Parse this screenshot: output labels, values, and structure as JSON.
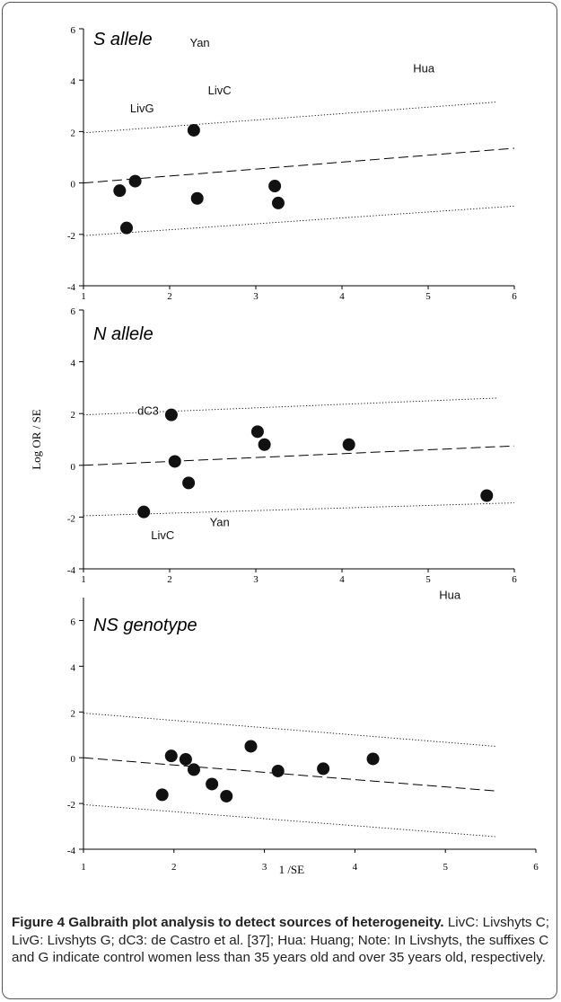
{
  "chart_data": [
    {
      "type": "scatter",
      "title": "S allele",
      "xlim": [
        1,
        6
      ],
      "ylim": [
        -4,
        6
      ],
      "xticks": [
        "1",
        "2",
        "3",
        "4",
        "5",
        "6"
      ],
      "yticks": [
        "-4",
        "-2",
        "0",
        "2",
        "4",
        "6"
      ],
      "x_tick_font": "small",
      "points": [
        {
          "x": 1.42,
          "y": -0.3
        },
        {
          "x": 1.5,
          "y": -1.75
        },
        {
          "x": 1.6,
          "y": 0.07
        },
        {
          "x": 2.28,
          "y": 2.05
        },
        {
          "x": 2.32,
          "y": -0.6
        },
        {
          "x": 3.22,
          "y": -0.12
        },
        {
          "x": 3.26,
          "y": -0.78
        }
      ],
      "regression": {
        "from": [
          1,
          0
        ],
        "to": [
          6,
          1.35
        ]
      },
      "upper_band": {
        "from": [
          1,
          1.95
        ],
        "to": [
          5.8,
          3.15
        ]
      },
      "lower_band": {
        "from": [
          1,
          -2.05
        ],
        "to": [
          6,
          -0.9
        ]
      },
      "annotations": [
        {
          "text": "Yan",
          "x": 2.35,
          "y": 5.3
        },
        {
          "text": "Hua",
          "x": 4.95,
          "y": 4.3
        },
        {
          "text": "LivG",
          "x": 1.68,
          "y": 2.75
        },
        {
          "text": "LivC",
          "x": 2.58,
          "y": 3.45
        }
      ]
    },
    {
      "type": "scatter",
      "title": "N allele",
      "ylabel": "Log OR / SE",
      "xlim": [
        1,
        6
      ],
      "ylim": [
        -4,
        6
      ],
      "xticks": [
        "1",
        "2",
        "3",
        "4",
        "5",
        "6"
      ],
      "yticks": [
        "-4",
        "-2",
        "0",
        "2",
        "4",
        "6"
      ],
      "x_tick_font": "small",
      "points": [
        {
          "x": 1.7,
          "y": -1.8
        },
        {
          "x": 2.02,
          "y": 1.95
        },
        {
          "x": 2.06,
          "y": 0.15
        },
        {
          "x": 2.22,
          "y": -0.68
        },
        {
          "x": 3.02,
          "y": 1.3
        },
        {
          "x": 3.1,
          "y": 0.8
        },
        {
          "x": 4.08,
          "y": 0.8
        },
        {
          "x": 5.68,
          "y": -1.17
        }
      ],
      "regression": {
        "from": [
          1,
          0
        ],
        "to": [
          6,
          0.75
        ]
      },
      "upper_band": {
        "from": [
          1,
          1.95
        ],
        "to": [
          5.8,
          2.6
        ]
      },
      "lower_band": {
        "from": [
          1,
          -1.95
        ],
        "to": [
          6,
          -1.45
        ]
      },
      "annotations": [
        {
          "text": "dC3",
          "x": 1.75,
          "y": 1.95
        },
        {
          "text": "Yan",
          "x": 2.58,
          "y": -2.35
        },
        {
          "text": "LivC",
          "x": 1.92,
          "y": -2.85
        }
      ]
    },
    {
      "type": "scatter",
      "title": "NS genotype",
      "xlabel": "1 /SE",
      "xlim": [
        1,
        6
      ],
      "ylim": [
        -4,
        7
      ],
      "xticks": [
        "1",
        "2",
        "3",
        "4",
        "5",
        "6"
      ],
      "yticks": [
        "-4",
        "-2",
        "0",
        "2",
        "4",
        "6"
      ],
      "x_tick_font": "large",
      "points": [
        {
          "x": 1.87,
          "y": -1.62
        },
        {
          "x": 1.97,
          "y": 0.08
        },
        {
          "x": 2.13,
          "y": -0.07
        },
        {
          "x": 2.22,
          "y": -0.52
        },
        {
          "x": 2.42,
          "y": -1.15
        },
        {
          "x": 2.58,
          "y": -1.68
        },
        {
          "x": 2.85,
          "y": 0.5
        },
        {
          "x": 3.15,
          "y": -0.58
        },
        {
          "x": 3.65,
          "y": -0.48
        },
        {
          "x": 4.2,
          "y": -0.05
        }
      ],
      "regression": {
        "from": [
          1,
          0
        ],
        "to": [
          5.55,
          -1.45
        ]
      },
      "upper_band": {
        "from": [
          1,
          1.95
        ],
        "to": [
          5.55,
          0.5
        ]
      },
      "lower_band": {
        "from": [
          1,
          -2.05
        ],
        "to": [
          5.55,
          -3.45
        ]
      },
      "annotations": [
        {
          "text": "Hua",
          "x": 5.05,
          "y": 6.95
        }
      ]
    }
  ],
  "caption": {
    "label": "Figure 4 Galbraith plot analysis to detect sources of heterogeneity.",
    "text": "LivC: Livshyts C; LivG: Livshyts G; dC3: de Castro et al. [37]; Hua: Huang; Note: In Livshyts, the suffixes C and G indicate control women less than 35 years old and over 35 years old, respectively."
  }
}
